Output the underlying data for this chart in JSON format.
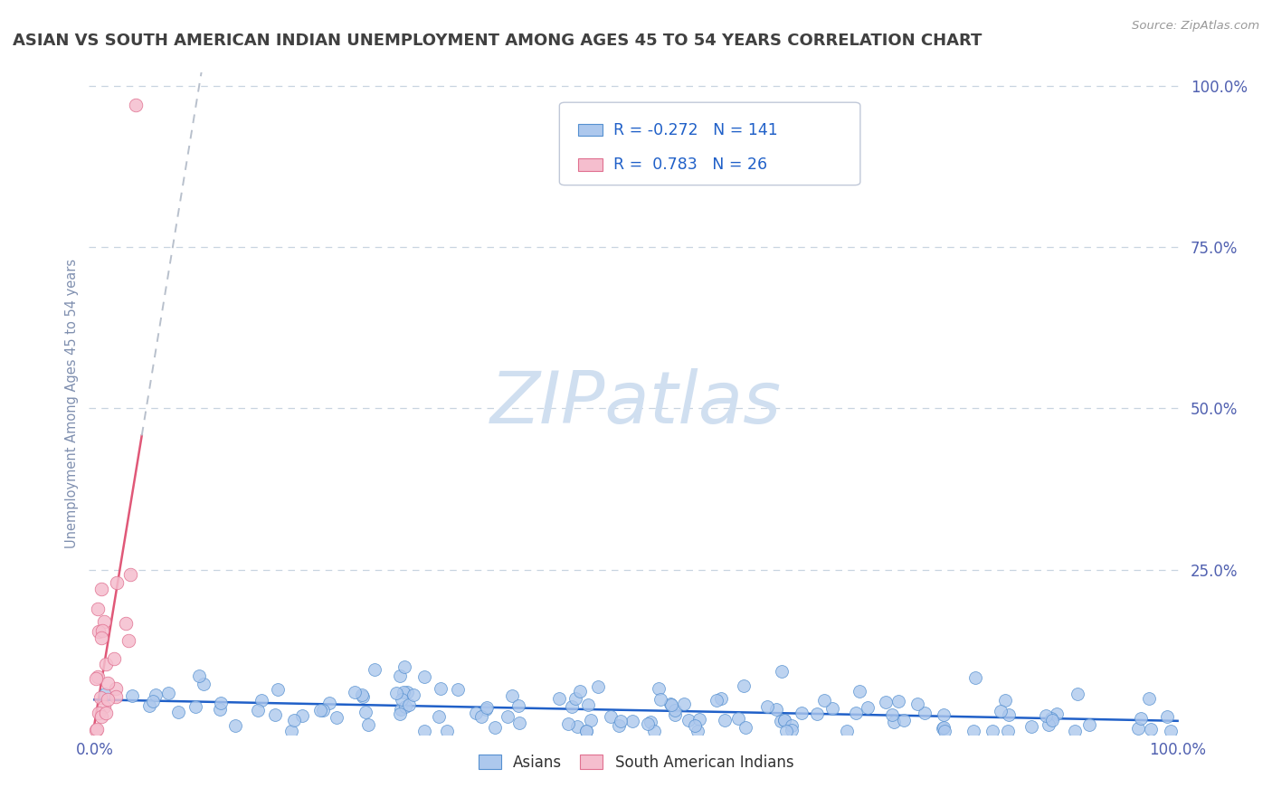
{
  "title": "ASIAN VS SOUTH AMERICAN INDIAN UNEMPLOYMENT AMONG AGES 45 TO 54 YEARS CORRELATION CHART",
  "source": "Source: ZipAtlas.com",
  "ylabel": "Unemployment Among Ages 45 to 54 years",
  "xlim": [
    -0.005,
    1.005
  ],
  "ylim": [
    -0.005,
    1.02
  ],
  "xtick_positions": [
    0.0,
    1.0
  ],
  "xticklabels": [
    "0.0%",
    "100.0%"
  ],
  "ytick_positions": [
    0.0,
    0.25,
    0.5,
    0.75,
    1.0
  ],
  "yticklabels": [
    "",
    "25.0%",
    "50.0%",
    "75.0%",
    "100.0%"
  ],
  "asian_color": "#adc8ed",
  "asian_edge_color": "#5590d0",
  "sai_color": "#f5bece",
  "sai_edge_color": "#e07090",
  "asian_R": -0.272,
  "asian_N": 141,
  "sai_R": 0.783,
  "sai_N": 26,
  "trend_asian_color": "#2060c8",
  "trend_sai_color": "#e05878",
  "trend_sai_dashed_color": "#b8c0cc",
  "watermark_color": "#d0dff0",
  "background_color": "#ffffff",
  "title_color": "#404040",
  "title_fontsize": 13,
  "tick_label_color": "#5060b0",
  "ylabel_color": "#8090b0",
  "grid_color": "#c8d4e0",
  "legend_edge_color": "#c0c8d8",
  "legend_text_color": "#2060c8"
}
